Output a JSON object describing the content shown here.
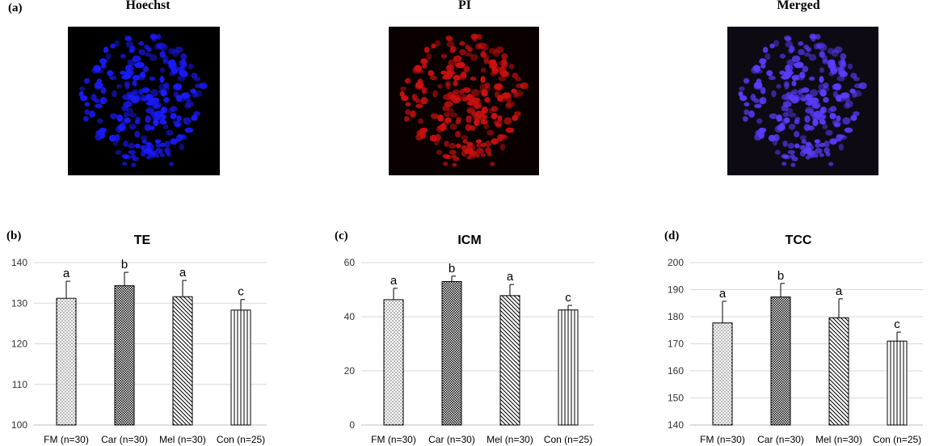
{
  "top": {
    "panel_label": "(a)",
    "images": [
      {
        "title": "Hoechst",
        "color": "#1a1aff",
        "bg": "#000000"
      },
      {
        "title": "PI",
        "color": "#cc1010",
        "bg": "#0a0000"
      },
      {
        "title": "Merged",
        "color": "#5a3cff",
        "bg": "#0e0a14"
      }
    ]
  },
  "chart_data": [
    {
      "type": "bar",
      "panel_label": "(b)",
      "title": "TE",
      "categories": [
        "FM (n=30)",
        "Car (n=30)",
        "Mel (n=30)",
        "Con (n=25)"
      ],
      "values": [
        131.2,
        134.3,
        131.6,
        128.3
      ],
      "errors": [
        4.2,
        3.3,
        4.0,
        2.6
      ],
      "letters": [
        "a",
        "b",
        "a",
        "c"
      ],
      "ylim": [
        100,
        140
      ],
      "yticks": [
        "100",
        "110",
        "120",
        "130",
        "140"
      ],
      "grid": true,
      "patterns": [
        "dots",
        "checker",
        "diag",
        "vert"
      ]
    },
    {
      "type": "bar",
      "panel_label": "(c)",
      "title": "ICM",
      "categories": [
        "FM (n=30)",
        "Car (n=30)",
        "Mel (n=30)",
        "Con (n=25)"
      ],
      "values": [
        46.3,
        53.0,
        47.8,
        42.5
      ],
      "errors": [
        4.2,
        2.0,
        4.1,
        1.7
      ],
      "letters": [
        "a",
        "b",
        "a",
        "c"
      ],
      "ylim": [
        0,
        60
      ],
      "yticks": [
        "0",
        "20",
        "40",
        "60"
      ],
      "grid": true,
      "patterns": [
        "dots",
        "checker",
        "diag",
        "vert"
      ]
    },
    {
      "type": "bar",
      "panel_label": "(d)",
      "title": "TCC",
      "categories": [
        "FM (n=30)",
        "Car (n=30)",
        "Mel (n=30)",
        "Con (n=25)"
      ],
      "values": [
        177.7,
        187.3,
        179.6,
        171.0
      ],
      "errors": [
        8.0,
        5.0,
        7.0,
        3.3
      ],
      "letters": [
        "a",
        "b",
        "a",
        "c"
      ],
      "ylim": [
        140,
        200
      ],
      "yticks": [
        "140",
        "150",
        "160",
        "170",
        "180",
        "190",
        "200"
      ],
      "grid": true,
      "patterns": [
        "dots",
        "checker",
        "diag",
        "vert"
      ]
    }
  ]
}
